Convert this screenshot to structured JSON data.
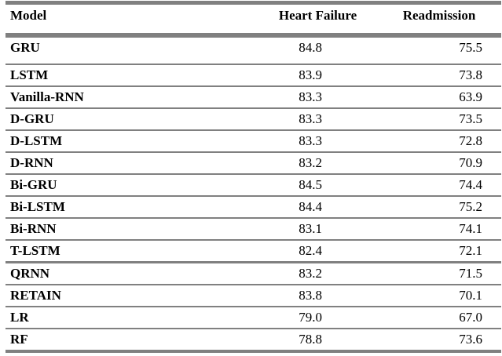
{
  "table": {
    "line_color": "#808080",
    "text_color": "#000000",
    "columns": {
      "model": "Model",
      "heart_failure": "Heart Failure",
      "readmission": "Readmission"
    },
    "rows": [
      {
        "model": "GRU",
        "heart_failure": "84.8",
        "readmission": "75.5"
      },
      {
        "model": "LSTM",
        "heart_failure": "83.9",
        "readmission": "73.8"
      },
      {
        "model": "Vanilla-RNN",
        "heart_failure": "83.3",
        "readmission": "63.9"
      },
      {
        "model": "D-GRU",
        "heart_failure": "83.3",
        "readmission": "73.5"
      },
      {
        "model": "D-LSTM",
        "heart_failure": "83.3",
        "readmission": "72.8"
      },
      {
        "model": "D-RNN",
        "heart_failure": "83.2",
        "readmission": "70.9"
      },
      {
        "model": "Bi-GRU",
        "heart_failure": "84.5",
        "readmission": "74.4"
      },
      {
        "model": "Bi-LSTM",
        "heart_failure": "84.4",
        "readmission": "75.2"
      },
      {
        "model": "Bi-RNN",
        "heart_failure": "83.1",
        "readmission": "74.1"
      },
      {
        "model": "T-LSTM",
        "heart_failure": "82.4",
        "readmission": "72.1"
      },
      {
        "model": "QRNN",
        "heart_failure": "83.2",
        "readmission": "71.5"
      },
      {
        "model": "RETAIN",
        "heart_failure": "83.8",
        "readmission": "70.1"
      },
      {
        "model": "LR",
        "heart_failure": "79.0",
        "readmission": "67.0"
      },
      {
        "model": "RF",
        "heart_failure": "78.8",
        "readmission": "73.6"
      }
    ]
  }
}
